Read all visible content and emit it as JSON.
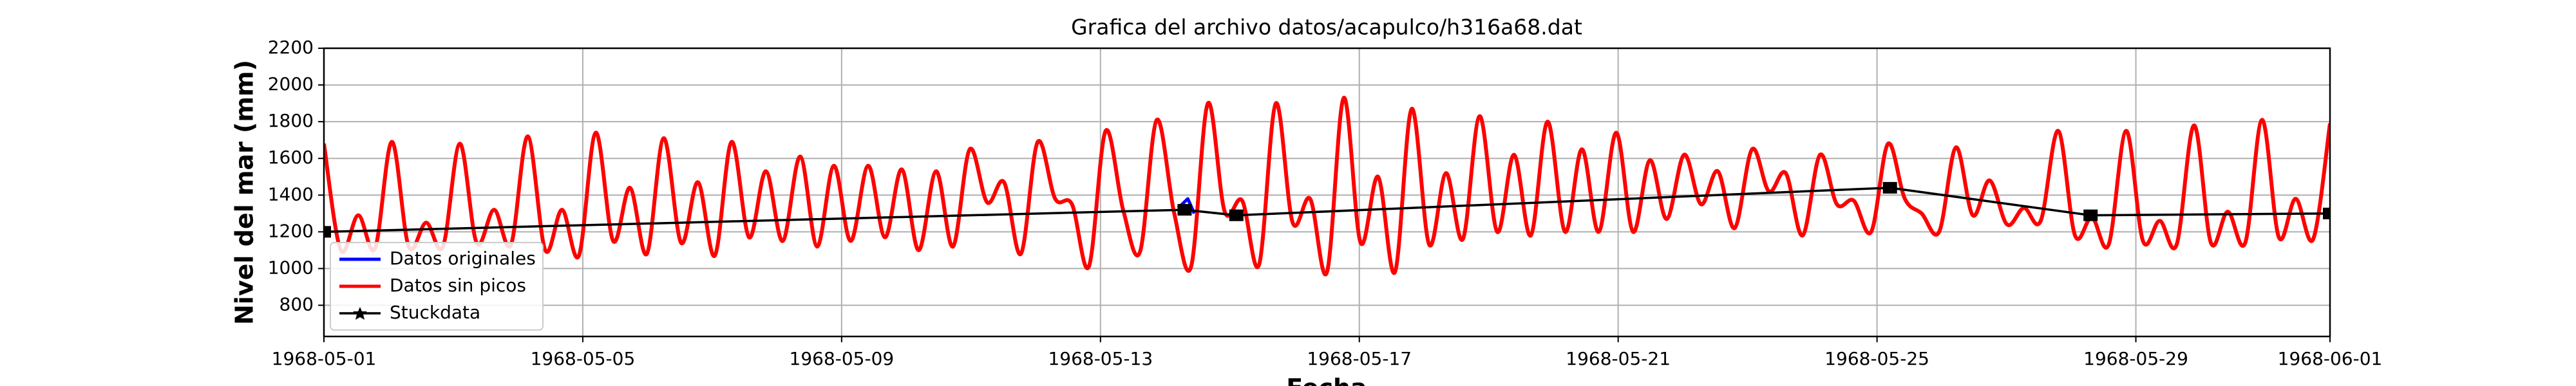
{
  "chart_data": {
    "type": "line",
    "title": "Grafica del archivo datos/acapulco/h316a68.dat",
    "xlabel": "Fecha",
    "ylabel": "Nivel del mar (mm)",
    "xlim": [
      0,
      31
    ],
    "ylim": [
      630,
      2200
    ],
    "xticks": [
      {
        "value": 0,
        "label": "1968-05-01"
      },
      {
        "value": 4,
        "label": "1968-05-05"
      },
      {
        "value": 8,
        "label": "1968-05-09"
      },
      {
        "value": 12,
        "label": "1968-05-13"
      },
      {
        "value": 16,
        "label": "1968-05-17"
      },
      {
        "value": 20,
        "label": "1968-05-21"
      },
      {
        "value": 24,
        "label": "1968-05-25"
      },
      {
        "value": 28,
        "label": "1968-05-29"
      },
      {
        "value": 31,
        "label": "1968-06-01"
      }
    ],
    "yticks": [
      800,
      1000,
      1200,
      1400,
      1600,
      1800,
      2000,
      2200
    ],
    "grid": true,
    "legend": "lower left",
    "series": [
      {
        "name": "Datos originales",
        "color": "#0000ff",
        "x": [
          13.2,
          13.35,
          13.45
        ],
        "values": [
          1330,
          1380,
          1300
        ]
      },
      {
        "name": "Datos sin picos",
        "color": "#ff0000",
        "x": [
          0,
          0.26,
          0.53,
          0.79,
          1.05,
          1.31,
          1.58,
          1.84,
          2.1,
          2.36,
          2.63,
          2.89,
          3.15,
          3.42,
          3.68,
          3.94,
          4.2,
          4.47,
          4.73,
          4.99,
          5.25,
          5.52,
          5.78,
          6.04,
          6.3,
          6.57,
          6.83,
          7.09,
          7.36,
          7.62,
          7.88,
          8.14,
          8.41,
          8.67,
          8.93,
          9.19,
          9.46,
          9.72,
          9.98,
          10.25,
          10.51,
          10.77,
          11.03,
          11.3,
          11.56,
          11.82,
          12.08,
          12.35,
          12.61,
          12.87,
          13.14,
          13.4,
          13.66,
          13.92,
          14.19,
          14.45,
          14.71,
          14.97,
          15.24,
          15.5,
          15.76,
          16.02,
          16.29,
          16.55,
          16.81,
          17.08,
          17.34,
          17.6,
          17.86,
          18.13,
          18.39,
          18.65,
          18.91,
          19.18,
          19.44,
          19.7,
          19.97,
          20.23,
          20.49,
          20.75,
          21.02,
          21.28,
          21.54,
          21.8,
          22.07,
          22.33,
          22.59,
          22.85,
          23.12,
          23.38,
          23.64,
          23.91,
          24.17,
          24.43,
          24.69,
          24.96,
          25.22,
          25.48,
          25.74,
          26.01,
          26.27,
          26.53,
          26.8,
          27.06,
          27.32,
          27.58,
          27.85,
          28.11,
          28.37,
          28.63,
          28.9,
          29.16,
          29.42,
          29.69,
          29.95,
          30.21,
          30.47,
          30.74,
          31.0
        ],
        "values": [
          1680,
          1100,
          1290,
          1110,
          1690,
          1120,
          1250,
          1120,
          1680,
          1140,
          1320,
          1130,
          1720,
          1100,
          1320,
          1070,
          1740,
          1150,
          1440,
          1080,
          1710,
          1140,
          1470,
          1070,
          1690,
          1170,
          1530,
          1150,
          1610,
          1120,
          1560,
          1150,
          1560,
          1170,
          1540,
          1100,
          1530,
          1120,
          1650,
          1360,
          1470,
          1080,
          1690,
          1380,
          1350,
          1010,
          1750,
          1320,
          1090,
          1810,
          1300,
          1010,
          1900,
          1310,
          1370,
          1020,
          1900,
          1250,
          1380,
          980,
          1930,
          1140,
          1500,
          980,
          1870,
          1130,
          1520,
          1160,
          1830,
          1200,
          1620,
          1180,
          1800,
          1200,
          1650,
          1200,
          1740,
          1200,
          1590,
          1270,
          1620,
          1350,
          1530,
          1220,
          1650,
          1420,
          1520,
          1180,
          1620,
          1350,
          1370,
          1200,
          1680,
          1380,
          1300,
          1200,
          1660,
          1290,
          1480,
          1240,
          1330,
          1260,
          1750,
          1180,
          1280,
          1130,
          1750,
          1150,
          1260,
          1130,
          1780,
          1140,
          1310,
          1140,
          1810,
          1170,
          1380,
          1160,
          1790
        ]
      },
      {
        "name": "Stuckdata",
        "color": "#000000",
        "x": [
          0,
          13.3,
          14.1,
          24.2,
          27.3,
          31
        ],
        "values": [
          1200,
          1320,
          1290,
          1440,
          1290,
          1300
        ]
      }
    ]
  }
}
